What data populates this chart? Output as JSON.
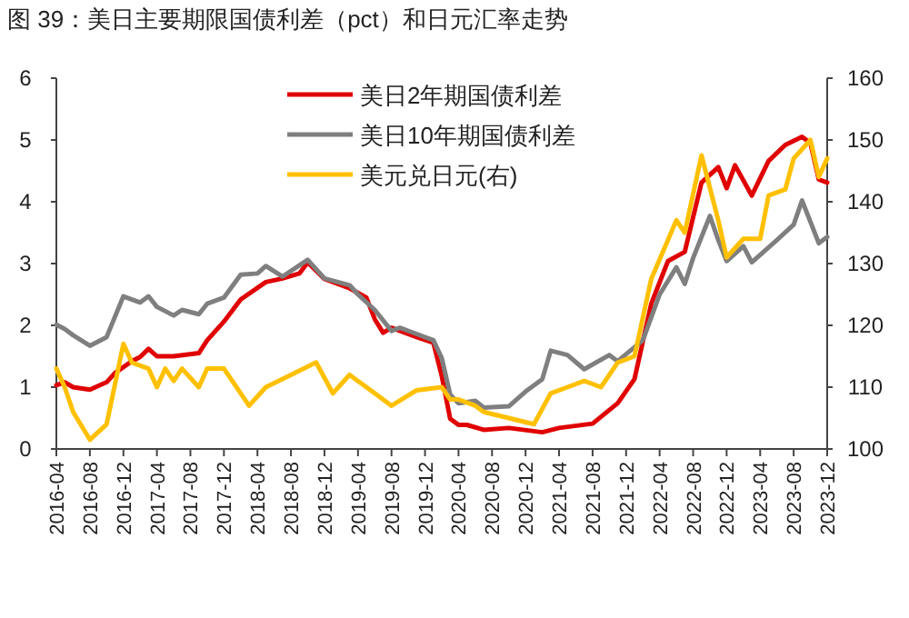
{
  "chart_data": {
    "type": "line",
    "title": "图 39：美日主要期限国债利差（pct）和日元汇率走势",
    "xlim": [
      "2016-04",
      "2023-12"
    ],
    "xticks": [
      "2016-04",
      "2016-08",
      "2016-12",
      "2017-04",
      "2017-08",
      "2017-12",
      "2018-04",
      "2018-08",
      "2018-12",
      "2019-04",
      "2019-08",
      "2019-12",
      "2020-04",
      "2020-08",
      "2020-12",
      "2021-04",
      "2021-08",
      "2021-12",
      "2022-04",
      "2022-08",
      "2022-12",
      "2023-04",
      "2023-08",
      "2023-12"
    ],
    "ylim": [
      0,
      6
    ],
    "yticks": [
      0,
      1,
      2,
      3,
      4,
      5,
      6
    ],
    "y2lim": [
      100,
      160
    ],
    "y2ticks": [
      100,
      110,
      120,
      130,
      140,
      150,
      160
    ],
    "legend": "top",
    "grid": false,
    "marker": "none",
    "line_style": "solid",
    "series": [
      {
        "name": "美日2年期国债利差",
        "color": "#e00000",
        "x": [
          "2016-04",
          "2016-05",
          "2016-06",
          "2016-08",
          "2016-10",
          "2016-11",
          "2017-01",
          "2017-02",
          "2017-03",
          "2017-04",
          "2017-06",
          "2017-09",
          "2017-10",
          "2017-12",
          "2018-02",
          "2018-05",
          "2018-07",
          "2018-09",
          "2018-10",
          "2018-12",
          "2019-03",
          "2019-05",
          "2019-06",
          "2019-07",
          "2019-08",
          "2019-11",
          "2020-01",
          "2020-02",
          "2020-03",
          "2020-04",
          "2020-05",
          "2020-07",
          "2020-10",
          "2021-02",
          "2021-04",
          "2021-08",
          "2021-11",
          "2022-01",
          "2022-03",
          "2022-05",
          "2022-07",
          "2022-09",
          "2022-11",
          "2022-12",
          "2023-01",
          "2023-03",
          "2023-05",
          "2023-07",
          "2023-09",
          "2023-10",
          "2023-11",
          "2023-12"
        ],
        "values": [
          1.03,
          1.08,
          1.0,
          0.96,
          1.08,
          1.23,
          1.42,
          1.49,
          1.62,
          1.5,
          1.5,
          1.55,
          1.76,
          2.06,
          2.42,
          2.7,
          2.76,
          2.84,
          3.02,
          2.75,
          2.6,
          2.45,
          2.1,
          1.88,
          1.96,
          1.81,
          1.72,
          1.18,
          0.49,
          0.39,
          0.39,
          0.31,
          0.34,
          0.27,
          0.34,
          0.41,
          0.74,
          1.13,
          2.35,
          3.04,
          3.19,
          4.31,
          4.56,
          4.22,
          4.59,
          4.1,
          4.66,
          4.92,
          5.05,
          4.95,
          4.36,
          4.31
        ]
      },
      {
        "name": "美日10年期国债利差",
        "color": "#7f7f7f",
        "x": [
          "2016-04",
          "2016-05",
          "2016-06",
          "2016-08",
          "2016-10",
          "2016-12",
          "2017-02",
          "2017-03",
          "2017-04",
          "2017-06",
          "2017-07",
          "2017-09",
          "2017-10",
          "2017-12",
          "2018-02",
          "2018-04",
          "2018-05",
          "2018-07",
          "2018-10",
          "2018-12",
          "2019-03",
          "2019-04",
          "2019-06",
          "2019-08",
          "2019-09",
          "2019-11",
          "2020-01",
          "2020-02",
          "2020-03",
          "2020-04",
          "2020-06",
          "2020-07",
          "2020-10",
          "2020-12",
          "2021-02",
          "2021-03",
          "2021-05",
          "2021-07",
          "2021-10",
          "2021-11",
          "2022-02",
          "2022-04",
          "2022-06",
          "2022-07",
          "2022-08",
          "2022-10",
          "2022-11",
          "2022-12",
          "2023-02",
          "2023-03",
          "2023-06",
          "2023-08",
          "2023-09",
          "2023-11",
          "2023-12"
        ],
        "values": [
          2.01,
          1.94,
          1.84,
          1.67,
          1.81,
          2.47,
          2.37,
          2.47,
          2.3,
          2.16,
          2.25,
          2.18,
          2.35,
          2.45,
          2.82,
          2.84,
          2.96,
          2.79,
          3.06,
          2.76,
          2.65,
          2.5,
          2.25,
          1.91,
          1.96,
          1.86,
          1.76,
          1.47,
          0.88,
          0.74,
          0.78,
          0.67,
          0.69,
          0.93,
          1.13,
          1.59,
          1.52,
          1.29,
          1.52,
          1.42,
          1.76,
          2.5,
          2.94,
          2.67,
          3.09,
          3.77,
          3.38,
          3.04,
          3.28,
          3.02,
          3.38,
          3.63,
          4.02,
          3.33,
          3.43
        ]
      },
      {
        "name": "美元兑日元(右)",
        "color": "#ffc000",
        "axis": "y2",
        "x": [
          "2016-04",
          "2016-05",
          "2016-06",
          "2016-08",
          "2016-10",
          "2016-12",
          "2017-01",
          "2017-03",
          "2017-04",
          "2017-05",
          "2017-06",
          "2017-07",
          "2017-09",
          "2017-10",
          "2017-12",
          "2018-03",
          "2018-05",
          "2018-08",
          "2018-11",
          "2019-01",
          "2019-03",
          "2019-06",
          "2019-08",
          "2019-11",
          "2020-02",
          "2020-03",
          "2020-04",
          "2020-06",
          "2020-07",
          "2020-10",
          "2021-01",
          "2021-03",
          "2021-05",
          "2021-07",
          "2021-09",
          "2021-11",
          "2022-01",
          "2022-03",
          "2022-06",
          "2022-07",
          "2022-09",
          "2022-11",
          "2022-12",
          "2023-02",
          "2023-04",
          "2023-05",
          "2023-07",
          "2023-08",
          "2023-10",
          "2023-11",
          "2023-12"
        ],
        "values": [
          113,
          110,
          106,
          101.5,
          104,
          117,
          114,
          113,
          110,
          113,
          111,
          113,
          110,
          113,
          113,
          107,
          110,
          112,
          114,
          109,
          112,
          109,
          107,
          109.5,
          110,
          108,
          108,
          107,
          106,
          105,
          104,
          109,
          110,
          111,
          110,
          114,
          115,
          127.5,
          137,
          135,
          147.5,
          137,
          131,
          134,
          134,
          141,
          142,
          147,
          150,
          144,
          147
        ]
      }
    ]
  }
}
